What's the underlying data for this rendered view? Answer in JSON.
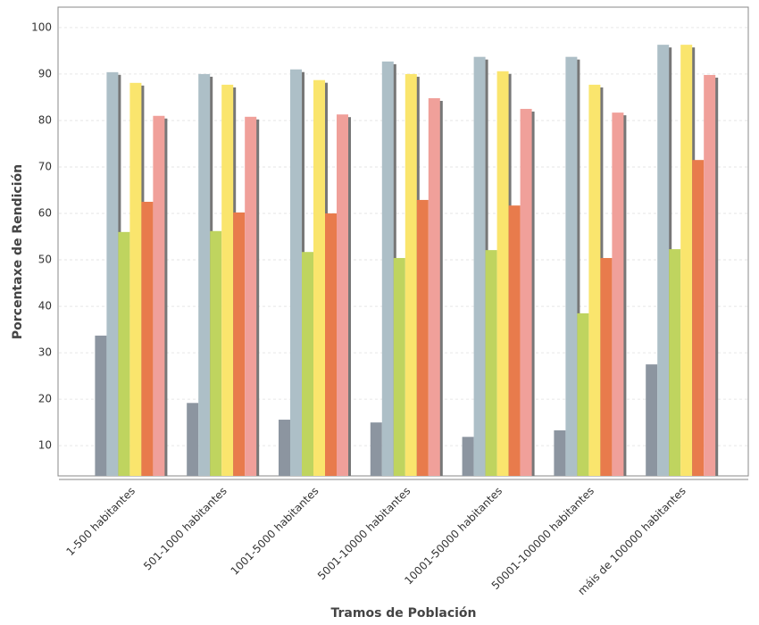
{
  "chart_data": {
    "type": "bar",
    "x_label": "Tramos de Población",
    "y_label": "Porcentaxe de Rendición",
    "categories": [
      "1-500 habitantes",
      "501-1000 habitantes",
      "1001-5000 habitantes",
      "5001-10000 habitantes",
      "10001-50000 habitantes",
      "50001-100000 habitantes",
      "máis de 100000 habitantes"
    ],
    "series": [
      {
        "color": "#8c95a0",
        "values": [
          33.7,
          19.2,
          15.6,
          15.0,
          11.9,
          13.3,
          27.5
        ]
      },
      {
        "color": "#adbfc7",
        "values": [
          90.4,
          90.0,
          91.0,
          92.7,
          93.7,
          93.7,
          96.3
        ]
      },
      {
        "color": "#bfd45f",
        "values": [
          56.0,
          56.2,
          51.7,
          50.4,
          52.1,
          38.5,
          52.3
        ]
      },
      {
        "color": "#fae56d",
        "values": [
          88.1,
          87.7,
          88.7,
          90.0,
          90.6,
          87.7,
          96.3
        ]
      },
      {
        "color": "#e87b4c",
        "values": [
          62.5,
          60.2,
          60.0,
          62.9,
          61.7,
          50.4,
          71.5
        ]
      },
      {
        "color": "#f0a09a",
        "values": [
          81.0,
          80.8,
          81.3,
          84.8,
          82.5,
          81.7,
          89.8
        ]
      }
    ],
    "ylim": [
      3.5,
      104.4
    ],
    "yticks": [
      10,
      20,
      30,
      40,
      50,
      60,
      70,
      80,
      90,
      100
    ],
    "grid": true
  }
}
